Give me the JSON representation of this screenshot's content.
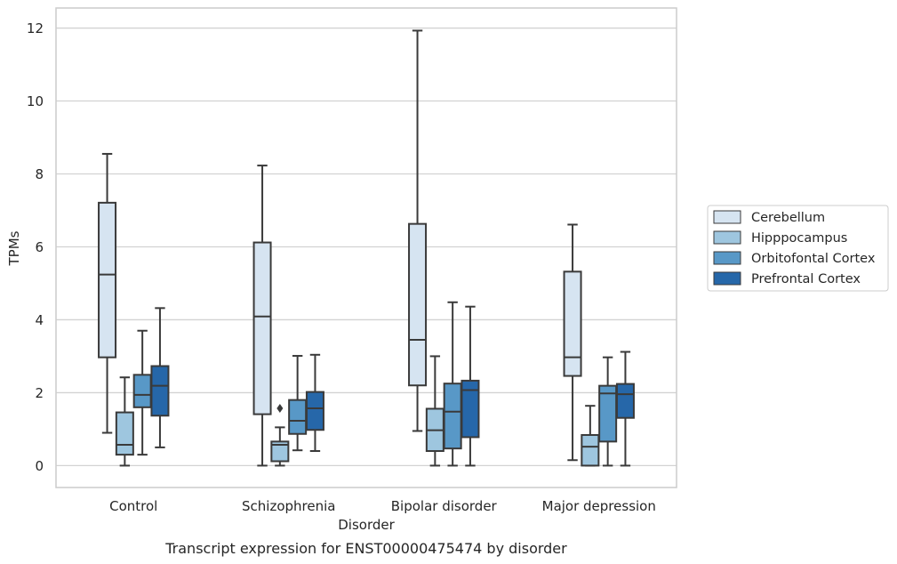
{
  "chart_data": {
    "type": "box",
    "xlabel": "Disorder",
    "ylabel": "TPMs",
    "caption": "Transcript expression for ENST00000475474 by disorder",
    "ylim": [
      -0.6,
      12.55
    ],
    "yticks": [
      0,
      2,
      4,
      6,
      8,
      10,
      12
    ],
    "grid": "horizontal",
    "legend_position": "right",
    "categories": [
      "Control",
      "Schizophrenia",
      "Bipolar disorder",
      "Major depression"
    ],
    "series": [
      {
        "name": "Cerebellum",
        "color": "#d6e4f1",
        "boxes": [
          {
            "whisker_low": 0.9,
            "q1": 2.97,
            "median": 5.24,
            "q3": 7.21,
            "whisker_high": 8.55,
            "outliers": []
          },
          {
            "whisker_low": 0.0,
            "q1": 1.41,
            "median": 4.09,
            "q3": 6.12,
            "whisker_high": 8.23,
            "outliers": []
          },
          {
            "whisker_low": 0.95,
            "q1": 2.2,
            "median": 3.45,
            "q3": 6.63,
            "whisker_high": 11.93,
            "outliers": []
          },
          {
            "whisker_low": 0.15,
            "q1": 2.46,
            "median": 2.97,
            "q3": 5.32,
            "whisker_high": 6.61,
            "outliers": []
          }
        ]
      },
      {
        "name": "Hipppocampus",
        "color": "#9ec6df",
        "boxes": [
          {
            "whisker_low": 0.0,
            "q1": 0.3,
            "median": 0.57,
            "q3": 1.46,
            "whisker_high": 2.42,
            "outliers": []
          },
          {
            "whisker_low": 0.0,
            "q1": 0.12,
            "median": 0.57,
            "q3": 0.66,
            "whisker_high": 1.05,
            "outliers": [
              1.57
            ]
          },
          {
            "whisker_low": 0.0,
            "q1": 0.4,
            "median": 0.97,
            "q3": 1.56,
            "whisker_high": 3.0,
            "outliers": []
          },
          {
            "whisker_low": 0.0,
            "q1": 0.0,
            "median": 0.52,
            "q3": 0.84,
            "whisker_high": 1.64,
            "outliers": []
          }
        ]
      },
      {
        "name": "Orbitofontal Cortex",
        "color": "#5898c7",
        "boxes": [
          {
            "whisker_low": 0.3,
            "q1": 1.6,
            "median": 1.94,
            "q3": 2.49,
            "whisker_high": 3.7,
            "outliers": []
          },
          {
            "whisker_low": 0.42,
            "q1": 0.87,
            "median": 1.23,
            "q3": 1.8,
            "whisker_high": 3.01,
            "outliers": []
          },
          {
            "whisker_low": 0.0,
            "q1": 0.47,
            "median": 1.48,
            "q3": 2.25,
            "whisker_high": 4.48,
            "outliers": []
          },
          {
            "whisker_low": 0.0,
            "q1": 0.66,
            "median": 1.98,
            "q3": 2.19,
            "whisker_high": 2.97,
            "outliers": []
          }
        ]
      },
      {
        "name": "Prefrontal Cortex",
        "color": "#2667a9",
        "boxes": [
          {
            "whisker_low": 0.5,
            "q1": 1.37,
            "median": 2.19,
            "q3": 2.73,
            "whisker_high": 4.32,
            "outliers": []
          },
          {
            "whisker_low": 0.4,
            "q1": 0.98,
            "median": 1.57,
            "q3": 2.02,
            "whisker_high": 3.04,
            "outliers": []
          },
          {
            "whisker_low": 0.0,
            "q1": 0.78,
            "median": 2.07,
            "q3": 2.33,
            "whisker_high": 4.36,
            "outliers": []
          },
          {
            "whisker_low": 0.0,
            "q1": 1.31,
            "median": 1.96,
            "q3": 2.24,
            "whisker_high": 3.12,
            "outliers": []
          }
        ]
      }
    ]
  }
}
